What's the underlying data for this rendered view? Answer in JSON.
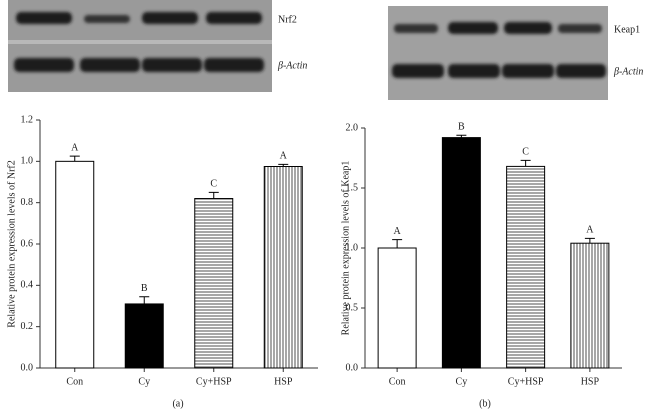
{
  "chart_data": [
    {
      "type": "bar",
      "panel_label": "(a)",
      "y_label": "Relative protein expression levels of Nrf2",
      "blot_labels": [
        "Nrf2",
        "β-Actin"
      ],
      "categories": [
        "Con",
        "Cy",
        "Cy+HSP",
        "HSP"
      ],
      "values": [
        1.0,
        0.31,
        0.82,
        0.975
      ],
      "errors": [
        0.025,
        0.035,
        0.03,
        0.01
      ],
      "annotations": [
        "A",
        "B",
        "C",
        "A"
      ],
      "patterns": [
        "white",
        "black",
        "horizontal",
        "vertical"
      ],
      "ylim": [
        0,
        1.2
      ],
      "yticks": [
        {
          "value": 0,
          "label": "0.0"
        },
        0.2,
        0.4,
        0.6,
        0.8,
        {
          "value": 1,
          "label": "1.0"
        },
        1.2
      ]
    },
    {
      "type": "bar",
      "panel_label": "(b)",
      "y_label": "Relative protein expression levels of Keap1",
      "blot_labels": [
        "Keap1",
        "β-Actin"
      ],
      "categories": [
        "Con",
        "Cy",
        "Cy+HSP",
        "HSP"
      ],
      "values": [
        1.0,
        1.92,
        1.68,
        1.04
      ],
      "errors": [
        0.07,
        0.02,
        0.05,
        0.04
      ],
      "annotations": [
        "A",
        "B",
        "C",
        "A"
      ],
      "patterns": [
        "white",
        "black",
        "horizontal",
        "vertical"
      ],
      "ylim": [
        0,
        2
      ],
      "yticks": [
        {
          "value": 0,
          "label": "0.0"
        },
        0.5,
        {
          "value": 1,
          "label": "1.0"
        },
        1.5,
        {
          "value": 2,
          "label": "2.0"
        }
      ]
    }
  ]
}
